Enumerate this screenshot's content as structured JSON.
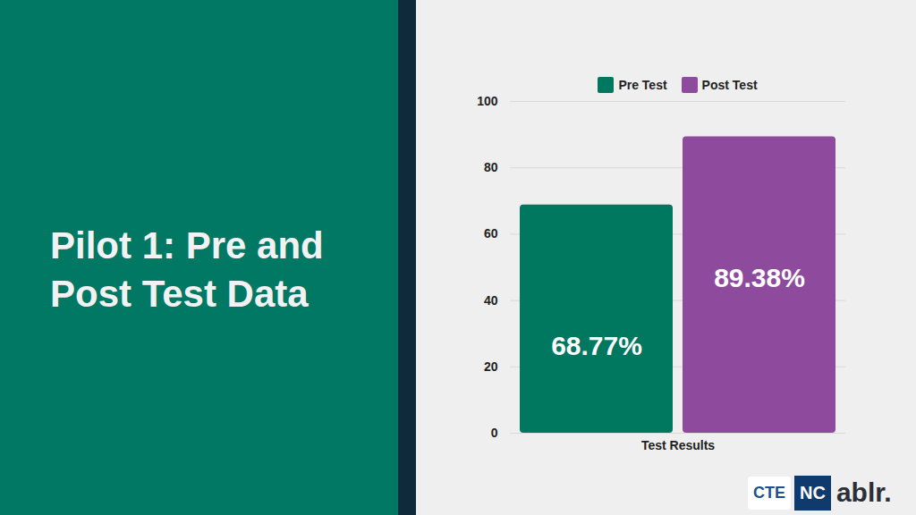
{
  "chart_data": {
    "type": "bar",
    "title": "Pilot 1: Pre and Post Test Data",
    "categories": [
      "Test Results"
    ],
    "series": [
      {
        "name": "Pre Test",
        "color": "#00775f",
        "values": [
          68.77
        ],
        "value_labels": [
          "68.77%"
        ]
      },
      {
        "name": "Post Test",
        "color": "#8e4b9e",
        "values": [
          89.38
        ],
        "value_labels": [
          "89.38%"
        ]
      }
    ],
    "ylim": [
      0,
      100
    ],
    "yticks": [
      0,
      20,
      40,
      60,
      80,
      100
    ],
    "grid": true,
    "legend": "top",
    "data_labels": true
  },
  "logos": [
    "CTE",
    "NC",
    "ablr."
  ]
}
